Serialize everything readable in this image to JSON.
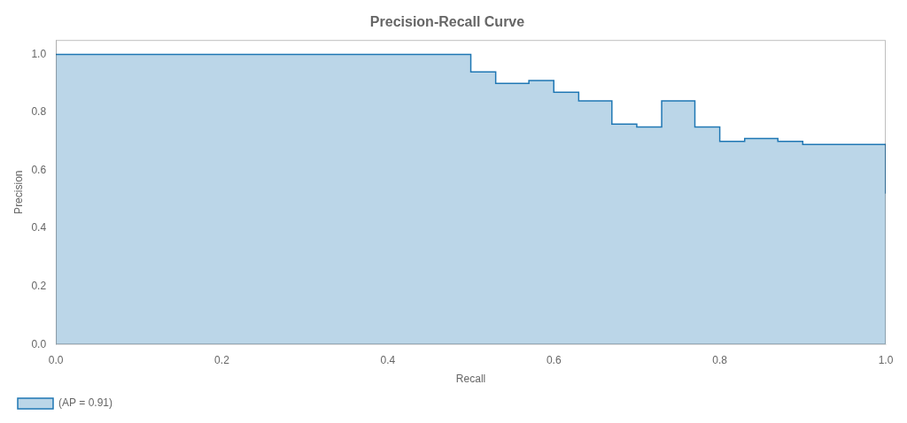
{
  "chart_data": {
    "type": "area",
    "title": "Precision-Recall Curve",
    "x_label": "Recall",
    "y_label": "Precision",
    "x": [
      0.0,
      0.5,
      0.53,
      0.57,
      0.6,
      0.63,
      0.67,
      0.7,
      0.73,
      0.77,
      0.8,
      0.83,
      0.87,
      0.9,
      0.93,
      1.0,
      1.0
    ],
    "series": [
      {
        "name": "(AP = 0.91)",
        "color": "#1f77b4",
        "line_style": "step",
        "values": [
          1.0,
          1.0,
          0.94,
          0.9,
          0.91,
          0.87,
          0.84,
          0.76,
          0.75,
          0.84,
          0.75,
          0.7,
          0.71,
          0.7,
          0.69,
          0.69,
          0.52
        ]
      }
    ],
    "xlim": [
      0.0,
      1.0
    ],
    "ylim": [
      0.0,
      1.05
    ],
    "xticks": [
      {
        "value": 0,
        "label": "0.0"
      },
      0.2,
      0.4,
      0.6,
      0.8,
      {
        "value": 1,
        "label": "1.0"
      }
    ],
    "yticks": [
      {
        "value": 0,
        "label": "0.0"
      },
      0.2,
      0.4,
      0.6,
      0.8,
      {
        "value": 1,
        "label": "1.0"
      }
    ],
    "grid": false,
    "legend": "lower left"
  }
}
